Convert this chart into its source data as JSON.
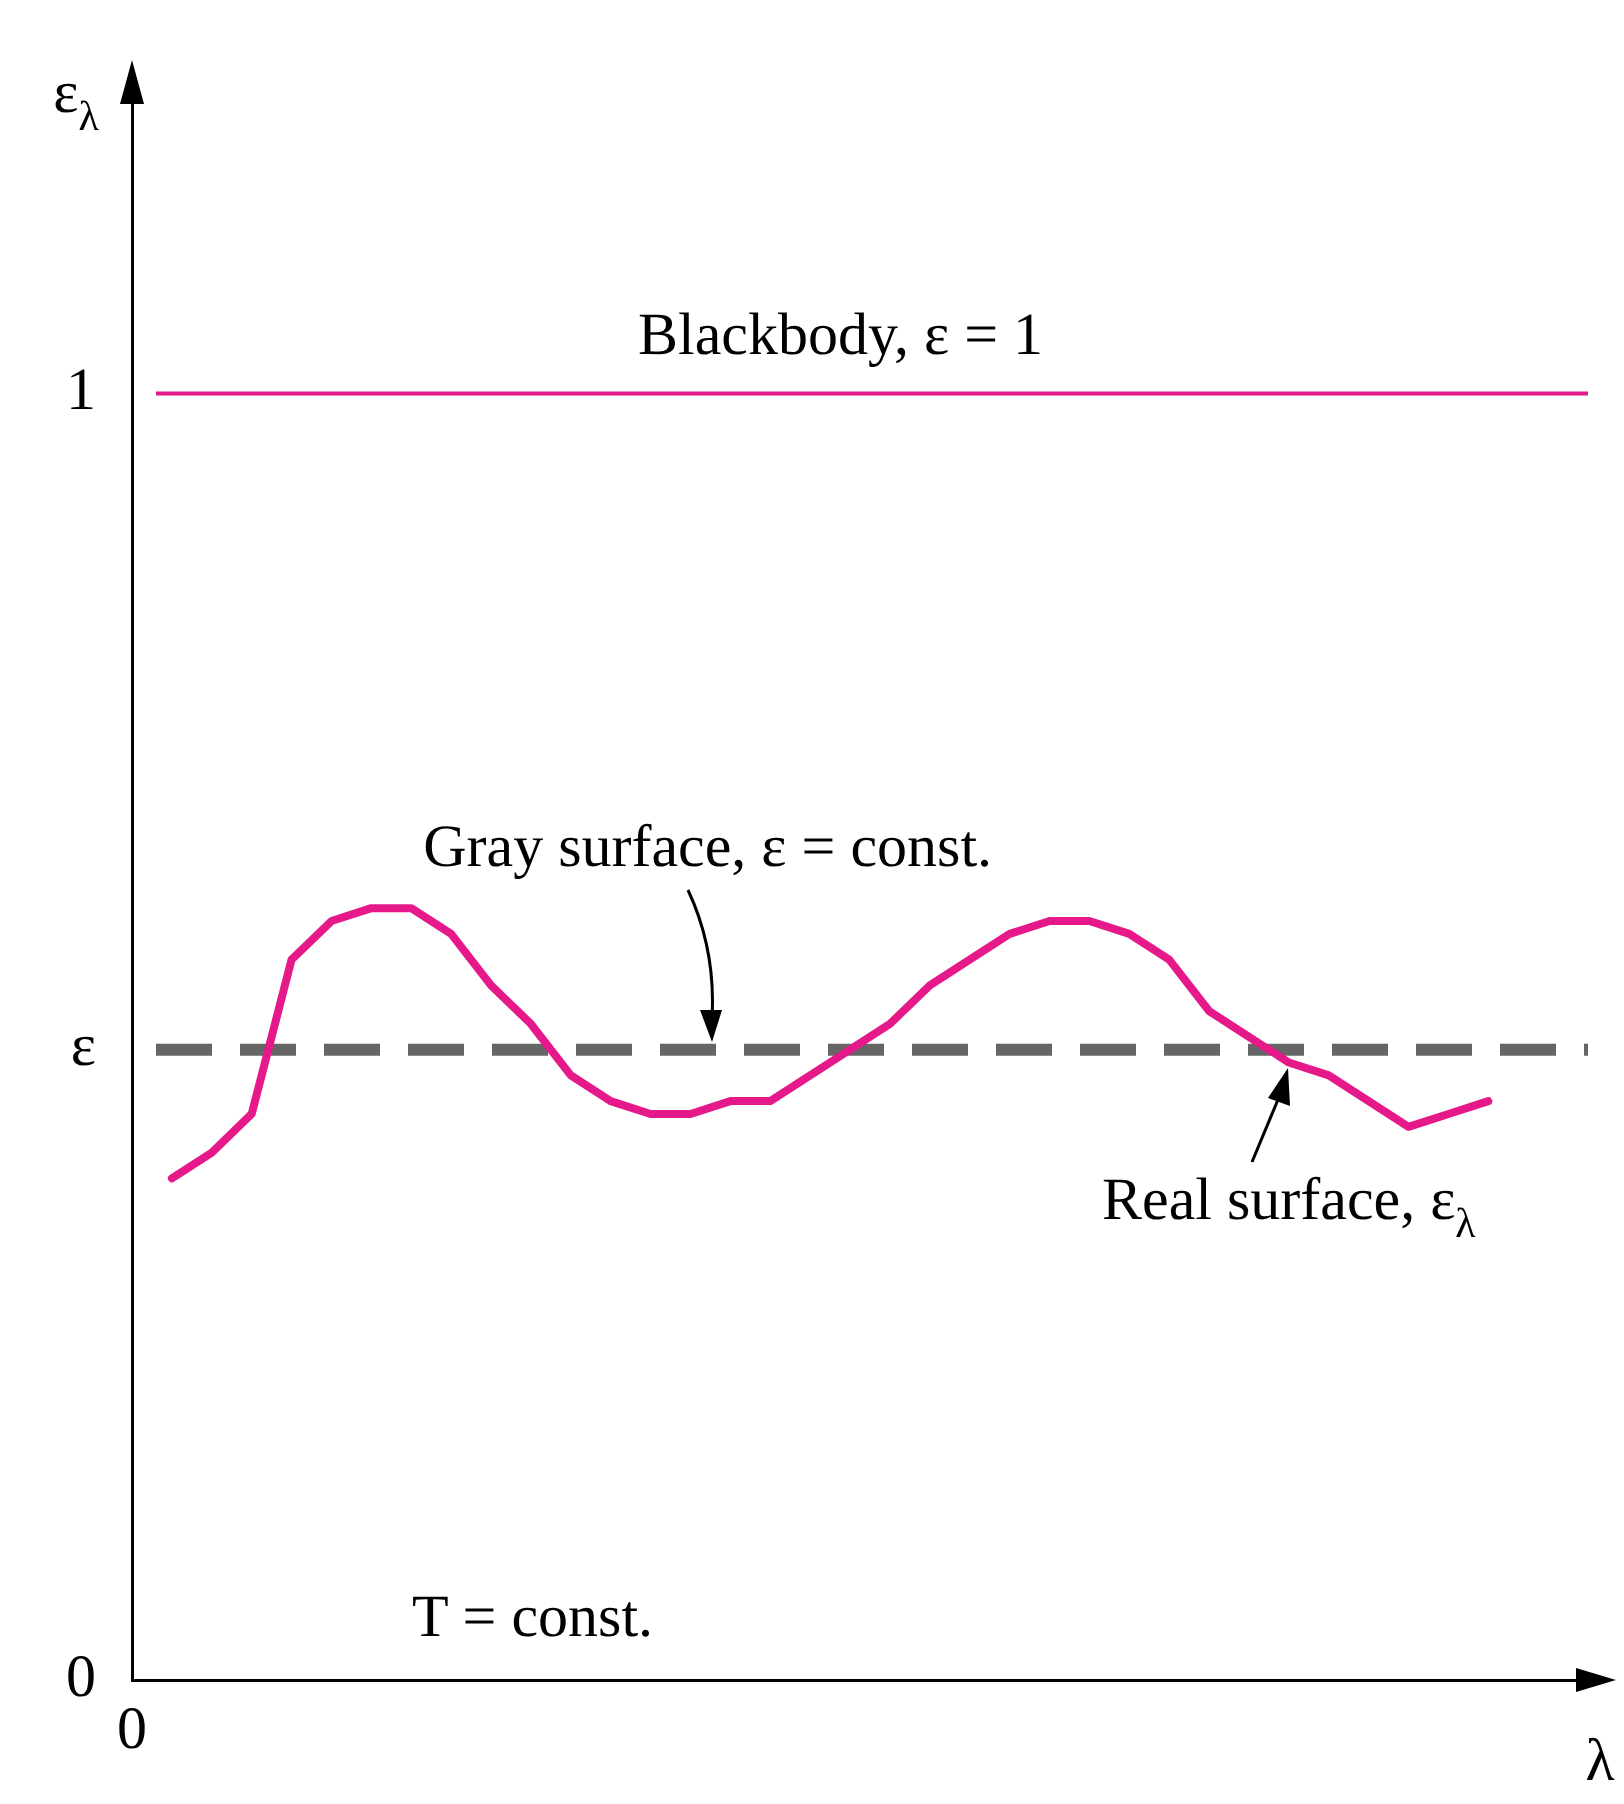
{
  "chart_data": {
    "type": "line",
    "xlabel": "λ",
    "ylabel": "ε$_{λ}$",
    "categories": [
      "0",
      null,
      null,
      null,
      null,
      null,
      null,
      null,
      null,
      null,
      null,
      null,
      null,
      null,
      null,
      null,
      null,
      null,
      null,
      null,
      null,
      null,
      null,
      null,
      null,
      null,
      null,
      null,
      null,
      null,
      null,
      null,
      null,
      null,
      null,
      null,
      null,
      null
    ],
    "series": [
      {
        "name": "Real surface, ε$_{λ}$",
        "color": "#e6198a",
        "values": [
          null,
          0.39,
          0.41,
          0.44,
          0.56,
          0.59,
          0.6,
          0.6,
          0.58,
          0.54,
          0.51,
          0.47,
          0.45,
          0.44,
          0.44,
          0.45,
          0.45,
          0.47,
          0.49,
          0.51,
          0.54,
          0.56,
          0.58,
          0.59,
          0.59,
          0.58,
          0.56,
          0.52,
          0.5,
          0.48,
          0.47,
          0.45,
          0.43,
          0.44,
          0.45,
          null,
          null,
          null
        ]
      }
    ],
    "ylim": [
      0,
      1.25
    ],
    "yticks": [
      0,
      {
        "value": 0.49,
        "label": "ε"
      },
      1
    ],
    "ref_lines": [
      {
        "axis": "y",
        "value": 1,
        "label": "Blackbody, ε = 1",
        "color": "#e6198a",
        "line_style": "solid"
      },
      {
        "axis": "y",
        "value": 0.49,
        "label": "Gray surface, ε = const.",
        "color": "#666666",
        "line_style": "dashed"
      }
    ],
    "annotations": [
      "T = const."
    ],
    "grid": false,
    "legend": false,
    "marker": "none",
    "line_style": "solid"
  }
}
